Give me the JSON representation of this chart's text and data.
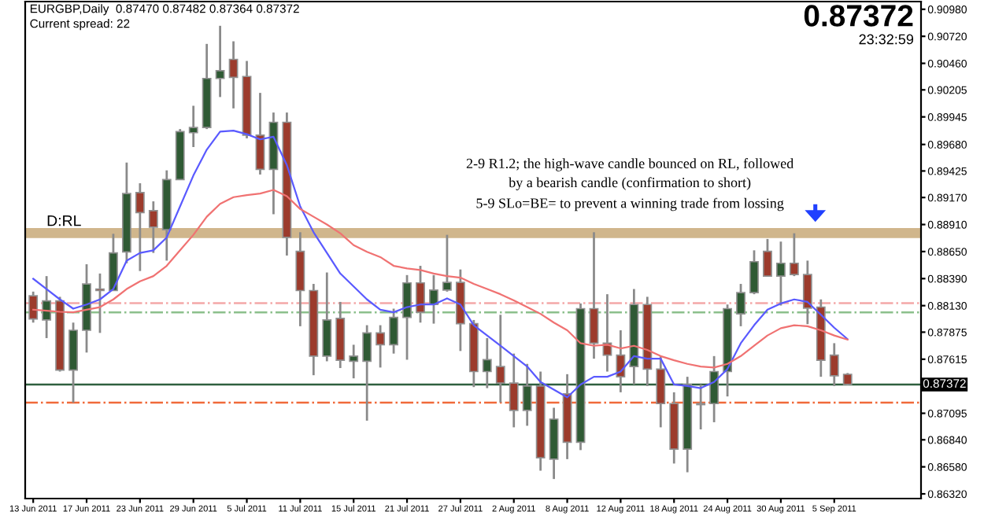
{
  "chart_data": {
    "type": "candlestick",
    "title": "EURGBP,Daily  0.87470 0.87482 0.87364 0.87372",
    "subtitle": "Current spread: 22",
    "categories": [
      "13 Jun 2011",
      null,
      null,
      null,
      "17 Jun 2011",
      null,
      null,
      null,
      "23 Jun 2011",
      null,
      null,
      null,
      "29 Jun 2011",
      null,
      null,
      null,
      "5 Jul 2011",
      null,
      null,
      null,
      "11 Jul 2011",
      null,
      null,
      null,
      "15 Jul 2011",
      null,
      null,
      null,
      "21 Jul 2011",
      null,
      null,
      null,
      "27 Jul 2011",
      null,
      null,
      null,
      "2 Aug 2011",
      null,
      null,
      null,
      "8 Aug 2011",
      null,
      null,
      null,
      "12 Aug 2011",
      null,
      null,
      null,
      "18 Aug 2011",
      null,
      null,
      null,
      "24 Aug 2011",
      null,
      null,
      null,
      "30 Aug 2011",
      null,
      null,
      null,
      "5 Sep 2011",
      null
    ],
    "ohlc": [
      [
        0.88225,
        0.88265,
        0.87967,
        0.88002
      ],
      [
        0.87992,
        0.88414,
        0.87818,
        0.88176
      ],
      [
        0.88176,
        0.88215,
        0.87496,
        0.87511
      ],
      [
        0.87511,
        0.87967,
        0.87198,
        0.87893
      ],
      [
        0.87893,
        0.88528,
        0.87679,
        0.88339
      ],
      [
        0.8829,
        0.88439,
        0.87868,
        0.88275
      ],
      [
        0.88275,
        0.88821,
        0.88275,
        0.88637
      ],
      [
        0.88647,
        0.89506,
        0.88538,
        0.89208
      ],
      [
        0.89218,
        0.89307,
        0.88463,
        0.89024
      ],
      [
        0.89044,
        0.89133,
        0.88637,
        0.88885
      ],
      [
        0.8886,
        0.89431,
        0.88563,
        0.89342
      ],
      [
        0.89342,
        0.89828,
        0.89342,
        0.89803
      ],
      [
        0.89793,
        0.90052,
        0.89655,
        0.89843
      ],
      [
        0.89843,
        0.90647,
        0.89828,
        0.90315
      ],
      [
        0.90315,
        0.90821,
        0.90136,
        0.90389
      ],
      [
        0.90498,
        0.90672,
        0.90027,
        0.90325
      ],
      [
        0.90334,
        0.90483,
        0.89739,
        0.89769
      ],
      [
        0.89769,
        0.90176,
        0.89391,
        0.89441
      ],
      [
        0.89441,
        0.89987,
        0.89009,
        0.89893
      ],
      [
        0.89893,
        0.89987,
        0.88612,
        0.88786
      ],
      [
        0.88652,
        0.88836,
        0.87932,
        0.88275
      ],
      [
        0.88275,
        0.88339,
        0.87461,
        0.87645
      ],
      [
        0.87645,
        0.88449,
        0.87595,
        0.87992
      ],
      [
        0.88007,
        0.88166,
        0.8753,
        0.87605
      ],
      [
        0.87595,
        0.87754,
        0.87431,
        0.87645
      ],
      [
        0.87595,
        0.87942,
        0.87024,
        0.87868
      ],
      [
        0.87868,
        0.87942,
        0.87535,
        0.87754
      ],
      [
        0.87754,
        0.88101,
        0.87669,
        0.88017
      ],
      [
        0.88017,
        0.88424,
        0.8761,
        0.88349
      ],
      [
        0.88349,
        0.88513,
        0.87967,
        0.88066
      ],
      [
        0.88141,
        0.88424,
        0.87957,
        0.8828
      ],
      [
        0.8828,
        0.88811,
        0.88265,
        0.88354
      ],
      [
        0.88354,
        0.88478,
        0.87694,
        0.87957
      ],
      [
        0.87957,
        0.87992,
        0.87347,
        0.87496
      ],
      [
        0.87496,
        0.87818,
        0.87337,
        0.8761
      ],
      [
        0.87545,
        0.88042,
        0.87198,
        0.87386
      ],
      [
        0.87386,
        0.87669,
        0.8696,
        0.87123
      ],
      [
        0.87123,
        0.8757,
        0.86975,
        0.87357
      ],
      [
        0.87357,
        0.87496,
        0.86543,
        0.86667
      ],
      [
        0.86654,
        0.87148,
        0.86463,
        0.87039
      ],
      [
        0.87282,
        0.87471,
        0.86654,
        0.86816
      ],
      [
        0.86816,
        0.88151,
        0.86741,
        0.88101
      ],
      [
        0.88101,
        0.88836,
        0.8762,
        0.87769
      ],
      [
        0.87769,
        0.8824,
        0.87496,
        0.87654
      ],
      [
        0.87654,
        0.87893,
        0.87297,
        0.87446
      ],
      [
        0.87545,
        0.8829,
        0.87372,
        0.88141
      ],
      [
        0.88141,
        0.88215,
        0.87357,
        0.8752
      ],
      [
        0.8752,
        0.87645,
        0.8696,
        0.87188
      ],
      [
        0.87188,
        0.87297,
        0.86612,
        0.86751
      ],
      [
        0.86751,
        0.87446,
        0.86528,
        0.87372
      ],
      [
        0.87188,
        0.87372,
        0.8694,
        0.87178
      ],
      [
        0.87188,
        0.87645,
        0.87009,
        0.87496
      ],
      [
        0.87496,
        0.88141,
        0.87257,
        0.88101
      ],
      [
        0.88051,
        0.88339,
        0.87932,
        0.88255
      ],
      [
        0.88255,
        0.88662,
        0.8824,
        0.88553
      ],
      [
        0.88652,
        0.88771,
        0.88414,
        0.88414
      ],
      [
        0.88414,
        0.88746,
        0.88131,
        0.88538
      ],
      [
        0.88538,
        0.88826,
        0.88414,
        0.88429
      ],
      [
        0.88429,
        0.88563,
        0.87952,
        0.88106
      ],
      [
        0.88116,
        0.8819,
        0.87446,
        0.87605
      ],
      [
        0.87654,
        0.87769,
        0.87357,
        0.87456
      ],
      [
        0.8747,
        0.87482,
        0.87364,
        0.87372
      ]
    ],
    "colors": [
      "#9c3b2c",
      "#2f5a34",
      "#9c3b2c",
      "#2f5a34",
      "#2f5a34",
      "#9c3b2c",
      "#2f5a34",
      "#2f5a34",
      "#9c3b2c",
      "#9c3b2c",
      "#2f5a34",
      "#2f5a34",
      "#2f5a34",
      "#2f5a34",
      "#2f5a34",
      "#9c3b2c",
      "#9c3b2c",
      "#9c3b2c",
      "#2f5a34",
      "#9c3b2c",
      "#9c3b2c",
      "#9c3b2c",
      "#2f5a34",
      "#9c3b2c",
      "#2f5a34",
      "#2f5a34",
      "#9c3b2c",
      "#2f5a34",
      "#2f5a34",
      "#9c3b2c",
      "#2f5a34",
      "#2f5a34",
      "#9c3b2c",
      "#9c3b2c",
      "#2f5a34",
      "#9c3b2c",
      "#9c3b2c",
      "#2f5a34",
      "#9c3b2c",
      "#2f5a34",
      "#9c3b2c",
      "#2f5a34",
      "#9c3b2c",
      "#9c3b2c",
      "#9c3b2c",
      "#2f5a34",
      "#9c3b2c",
      "#9c3b2c",
      "#9c3b2c",
      "#2f5a34",
      "#9c3b2c",
      "#2f5a34",
      "#2f5a34",
      "#2f5a34",
      "#2f5a34",
      "#9c3b2c",
      "#2f5a34",
      "#9c3b2c",
      "#9c3b2c",
      "#9c3b2c",
      "#9c3b2c",
      "#9c3b2c"
    ],
    "series": [
      {
        "type": "line",
        "color": "#5a5aff",
        "values": [
          0.88389,
          0.8829,
          0.8819,
          0.88101,
          0.88141,
          0.8819,
          0.8829,
          0.88563,
          0.88637,
          0.88662,
          0.88786,
          0.89084,
          0.89382,
          0.8963,
          0.89803,
          0.89813,
          0.89779,
          0.89729,
          0.89754,
          0.89481,
          0.89084,
          0.88836,
          0.88637,
          0.88439,
          0.88315,
          0.8819,
          0.88091,
          0.88066,
          0.88116,
          0.88141,
          0.88141,
          0.882,
          0.88141,
          0.87942,
          0.87843,
          0.87744,
          0.87645,
          0.87545,
          0.87396,
          0.87322,
          0.87248,
          0.87372,
          0.87446,
          0.87446,
          0.87496,
          0.87645,
          0.8762,
          0.8762,
          0.87372,
          0.87357,
          0.87337,
          0.87396,
          0.8752,
          0.87769,
          0.87942,
          0.88091,
          0.88151,
          0.8819,
          0.88166,
          0.88042,
          0.87918,
          0.87808
        ]
      },
      {
        "type": "line",
        "color": "#f07272",
        "values": [
          0.88091,
          0.88081,
          0.88071,
          0.88066,
          0.88091,
          0.88116,
          0.8819,
          0.8829,
          0.88364,
          0.88414,
          0.88513,
          0.88662,
          0.88811,
          0.88985,
          0.89109,
          0.89173,
          0.89193,
          0.89208,
          0.89243,
          0.89183,
          0.89059,
          0.88985,
          0.8891,
          0.88826,
          0.88712,
          0.88647,
          0.88597,
          0.88513,
          0.88488,
          0.88473,
          0.88439,
          0.88414,
          0.88399,
          0.88339,
          0.8829,
          0.8824,
          0.88181,
          0.88116,
          0.88051,
          0.87967,
          0.87893,
          0.87769,
          0.87744,
          0.87754,
          0.87719,
          0.87744,
          0.87704,
          0.87645,
          0.87605,
          0.8757,
          0.87545,
          0.87535,
          0.8757,
          0.87645,
          0.87744,
          0.87843,
          0.87913,
          0.87942,
          0.87932,
          0.87893,
          0.87843,
          0.87803
        ]
      }
    ],
    "ylim": [
      0.86275,
      0.91054
    ],
    "yticks": [
      {
        "value": 0.9098,
        "label": "0.90980"
      },
      {
        "value": 0.9072,
        "label": "0.90720"
      },
      {
        "value": 0.9046,
        "label": "0.90460"
      },
      {
        "value": 0.90205,
        "label": "0.90205"
      },
      {
        "value": 0.89945,
        "label": "0.89945"
      },
      {
        "value": 0.8968,
        "label": "0.89680"
      },
      {
        "value": 0.89425,
        "label": "0.89425"
      },
      {
        "value": 0.8917,
        "label": "0.89170"
      },
      {
        "value": 0.8891,
        "label": "0.88910"
      },
      {
        "value": 0.8865,
        "label": "0.88650"
      },
      {
        "value": 0.8839,
        "label": "0.88390"
      },
      {
        "value": 0.8813,
        "label": "0.88130"
      },
      {
        "value": 0.87875,
        "label": "0.87875"
      },
      {
        "value": 0.87615,
        "label": "0.87615"
      },
      {
        "value": 0.87095,
        "label": "0.87095"
      },
      {
        "value": 0.8684,
        "label": "0.86840"
      },
      {
        "value": 0.8658,
        "label": "0.86580"
      },
      {
        "value": 0.8632,
        "label": "0.86320"
      }
    ],
    "ref_lines": [
      {
        "axis": "y",
        "value": 0.88155,
        "color": "#f4a8a8",
        "line_style": "dashed"
      },
      {
        "axis": "y",
        "value": 0.88066,
        "color": "#8cc08c",
        "line_style": "dashed"
      },
      {
        "axis": "y",
        "value": 0.87372,
        "label": "0.87372",
        "color": "#2f5f3f",
        "line_style": "solid"
      },
      {
        "axis": "y",
        "value": 0.87198,
        "color": "#f06a3a",
        "line_style": "dashed"
      }
    ],
    "bands": [
      {
        "axis": "y",
        "from": 0.8879,
        "to": 0.88866,
        "label": "D:RL",
        "color": "#c8aa78"
      }
    ],
    "annotations": [
      "0.87372",
      "23:32:59",
      "2-9 R1.2; the high-wave candle bounced on RL, followed\nby a bearish candle (confirmation to short)",
      "5-9 SLo=BE= to prevent a winning trade from lossing"
    ]
  }
}
